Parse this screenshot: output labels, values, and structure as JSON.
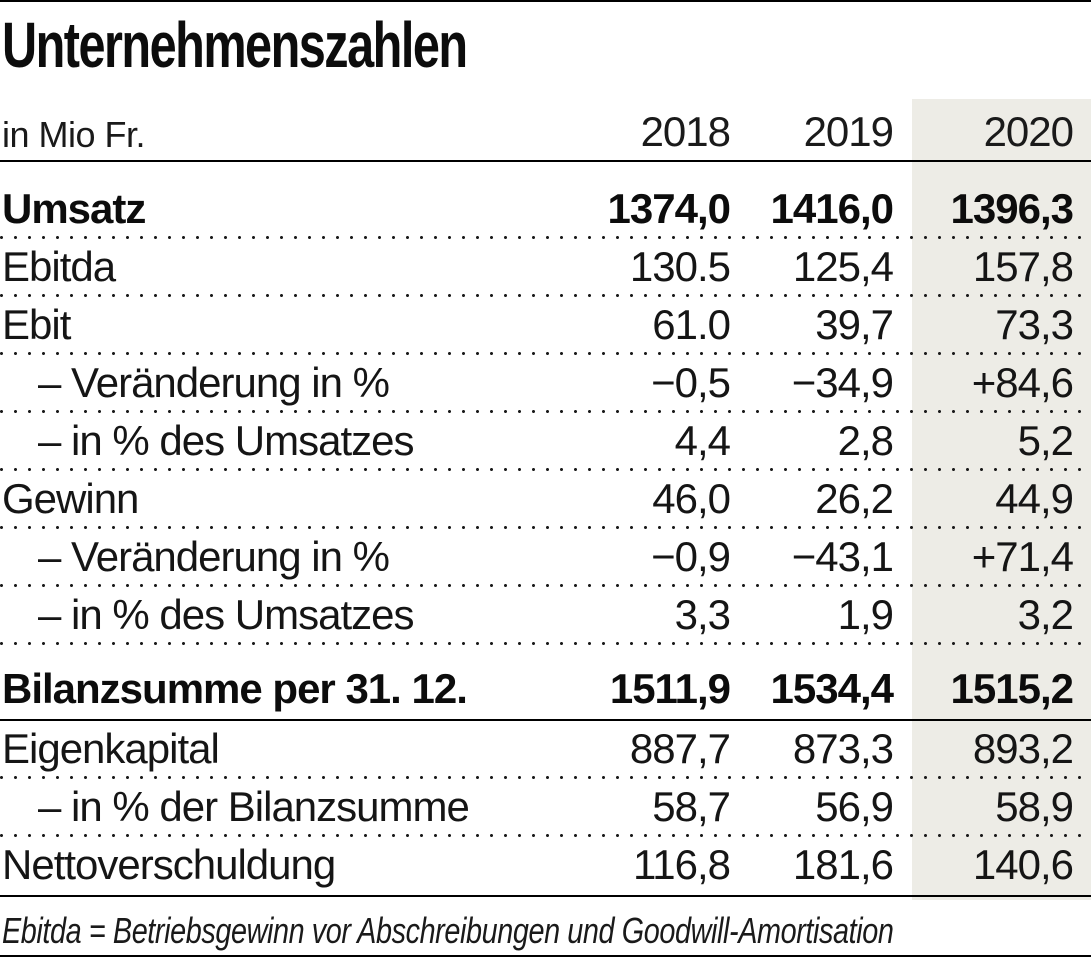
{
  "colors": {
    "highlight_column_bg": "#edece6",
    "rule": "#000000",
    "text": "#111111"
  },
  "chart_data": {
    "type": "table",
    "title": "Unternehmenszahlen",
    "unit": "in Mio Fr.",
    "columns": [
      "2018",
      "2019",
      "2020"
    ],
    "highlighted_column": "2020",
    "rows": [
      {
        "label": "Umsatz",
        "values": [
          "1374,0",
          "1416,0",
          "1396,3"
        ],
        "bold": true,
        "indent": false,
        "rule_below": "dotted"
      },
      {
        "label": "Ebitda",
        "values": [
          "130.5",
          "125,4",
          "157,8"
        ],
        "bold": false,
        "indent": false,
        "rule_below": "dotted"
      },
      {
        "label": "Ebit",
        "values": [
          "61.0",
          "39,7",
          "73,3"
        ],
        "bold": false,
        "indent": false,
        "rule_below": "dotted"
      },
      {
        "label": "– Veränderung in %",
        "values": [
          "−0,5",
          "−34,9",
          "+84,6"
        ],
        "bold": false,
        "indent": true,
        "rule_below": "dotted"
      },
      {
        "label": "– in % des Umsatzes",
        "values": [
          "4,4",
          "2,8",
          "5,2"
        ],
        "bold": false,
        "indent": true,
        "rule_below": "dotted"
      },
      {
        "label": "Gewinn",
        "values": [
          "46,0",
          "26,2",
          "44,9"
        ],
        "bold": false,
        "indent": false,
        "rule_below": "dotted"
      },
      {
        "label": "– Veränderung in %",
        "values": [
          "−0,9",
          "−43,1",
          "+71,4"
        ],
        "bold": false,
        "indent": true,
        "rule_below": "dotted"
      },
      {
        "label": "– in % des Umsatzes",
        "values": [
          "3,3",
          "1,9",
          "3,2"
        ],
        "bold": false,
        "indent": true,
        "rule_below": "dotted"
      },
      {
        "label": "Bilanzsumme per 31. 12.",
        "values": [
          "1511,9",
          "1534,4",
          "1515,2"
        ],
        "bold": true,
        "indent": false,
        "section_start": true,
        "rule_below": "solid"
      },
      {
        "label": "Eigenkapital",
        "values": [
          "887,7",
          "873,3",
          "893,2"
        ],
        "bold": false,
        "indent": false,
        "rule_below": "dotted"
      },
      {
        "label": "– in % der Bilanzsumme",
        "values": [
          "58,7",
          "56,9",
          "58,9"
        ],
        "bold": false,
        "indent": true,
        "rule_below": "dotted"
      },
      {
        "label": "Nettoverschuldung",
        "values": [
          "116,8",
          "181,6",
          "140,6"
        ],
        "bold": false,
        "indent": false,
        "rule_below": "solid"
      }
    ],
    "footnote": "Ebitda = Betriebsgewinn vor Abschreibungen und Goodwill-Amortisation"
  }
}
